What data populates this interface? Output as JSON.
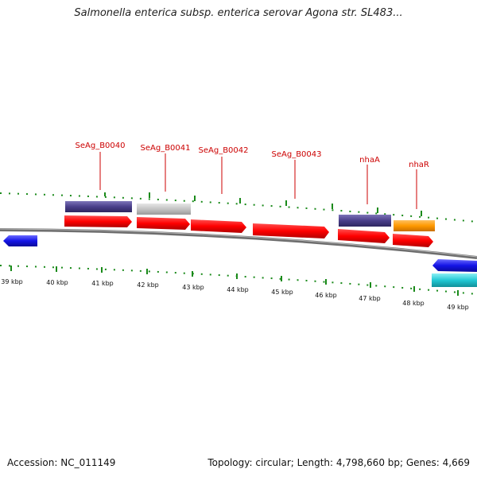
{
  "title": "Salmonella enterica subsp. enterica serovar Agona str. SL483...",
  "footer": {
    "accession": "Accession: NC_011149",
    "summary": "Topology: circular; Length: 4,798,660 bp; Genes: 4,669"
  },
  "axis": {
    "unit": "kbp",
    "ticks": [
      "39 kbp",
      "40 kbp",
      "41 kbp",
      "42 kbp",
      "43 kbp",
      "44 kbp",
      "45 kbp",
      "46 kbp",
      "47 kbp",
      "48 kbp",
      "49 kbp"
    ]
  },
  "genes": [
    {
      "label": "SeAg_B0040",
      "tracks": [
        "purple",
        "red"
      ]
    },
    {
      "label": "SeAg_B0041",
      "tracks": [
        "gray",
        "red"
      ]
    },
    {
      "label": "SeAg_B0042",
      "tracks": [
        "red"
      ]
    },
    {
      "label": "SeAg_B0043",
      "tracks": [
        "red"
      ]
    },
    {
      "label": "nhaA",
      "tracks": [
        "purple",
        "red"
      ]
    },
    {
      "label": "nhaR",
      "tracks": [
        "orange",
        "red"
      ]
    }
  ],
  "colors": {
    "red": "#ff0000",
    "purple": "#4a3f8a",
    "gray": "#c4c4c4",
    "orange": "#ff9900",
    "blue": "#1414e6",
    "cyan": "#22c8d4",
    "tick_green": "#1a8a1a",
    "backbone": "#808080",
    "label_red": "#cc0000"
  }
}
